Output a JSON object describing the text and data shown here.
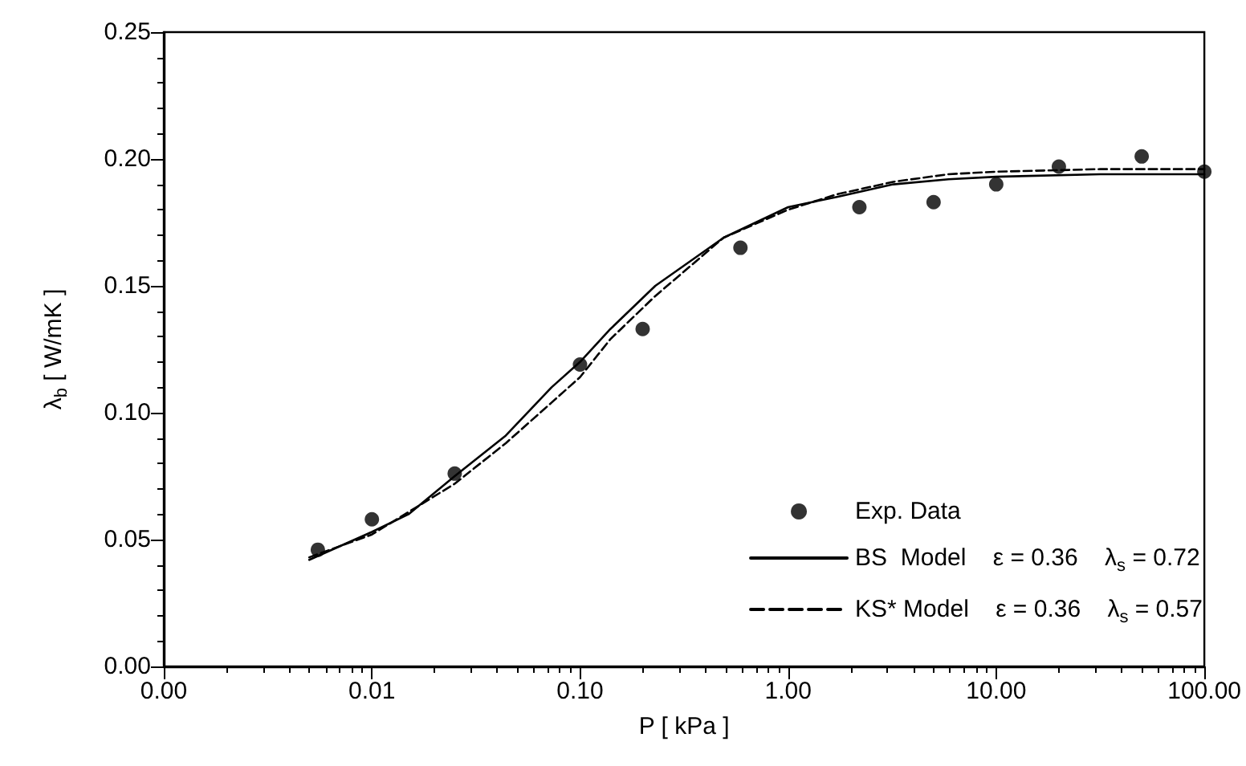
{
  "chart_data": {
    "type": "line",
    "xlabel": "P [ kPa ]",
    "ylabel": "λ$_{b}$ [ W/mK ]",
    "log": "x",
    "grid": false,
    "legend": "bottom right",
    "xlim": [
      0.001,
      100
    ],
    "xticks": [
      {
        "value": 0.001,
        "label": "0.00"
      },
      {
        "value": 0.01,
        "label": "0.01"
      },
      {
        "value": 0.1,
        "label": "0.10"
      },
      {
        "value": 1,
        "label": "1.00"
      },
      {
        "value": 10,
        "label": "10.00"
      },
      {
        "value": 100,
        "label": "100.00"
      }
    ],
    "ylim": [
      0,
      0.25
    ],
    "yticks": [
      {
        "value": 0,
        "label": "0.00"
      },
      {
        "value": 0.05,
        "label": "0.05"
      },
      {
        "value": 0.1,
        "label": "0.10"
      },
      {
        "value": 0.15,
        "label": "0.15"
      },
      {
        "value": 0.2,
        "label": "0.20"
      },
      {
        "value": 0.25,
        "label": "0.25"
      }
    ],
    "series": [
      {
        "name": "Exp. Data",
        "type": "scatter",
        "marker": "circle",
        "color": "#000000",
        "x": [
          0.0055,
          0.01,
          0.025,
          0.1,
          0.2,
          0.59,
          2.2,
          5,
          10,
          20,
          50,
          100
        ],
        "values": [
          0.046,
          0.058,
          0.076,
          0.119,
          0.133,
          0.165,
          0.181,
          0.183,
          0.19,
          0.197,
          0.201,
          0.195
        ]
      },
      {
        "name": "BS  Model    ε = 0.36    λ$_{s}$ = 0.72",
        "marker": "none",
        "line_style": "solid",
        "color": "#000000",
        "x": [
          0.005,
          0.01,
          0.015,
          0.025,
          0.044,
          0.073,
          0.1,
          0.14,
          0.23,
          0.49,
          1,
          1.7,
          3.2,
          5.9,
          10,
          31.6,
          100
        ],
        "values": [
          0.042,
          0.053,
          0.06,
          0.075,
          0.091,
          0.11,
          0.12,
          0.133,
          0.15,
          0.169,
          0.181,
          0.185,
          0.19,
          0.192,
          0.193,
          0.194,
          0.194
        ]
      },
      {
        "name": "KS* Model    ε = 0.36    λ$_{s}$ = 0.57",
        "marker": "none",
        "line_style": "dashed",
        "color": "#000000",
        "x": [
          0.005,
          0.01,
          0.025,
          0.044,
          0.073,
          0.1,
          0.14,
          0.23,
          0.49,
          1,
          1.7,
          3.2,
          5.9,
          10,
          31.6,
          100
        ],
        "values": [
          0.043,
          0.052,
          0.072,
          0.088,
          0.104,
          0.114,
          0.129,
          0.146,
          0.169,
          0.18,
          0.186,
          0.191,
          0.194,
          0.195,
          0.196,
          0.196
        ]
      }
    ]
  }
}
